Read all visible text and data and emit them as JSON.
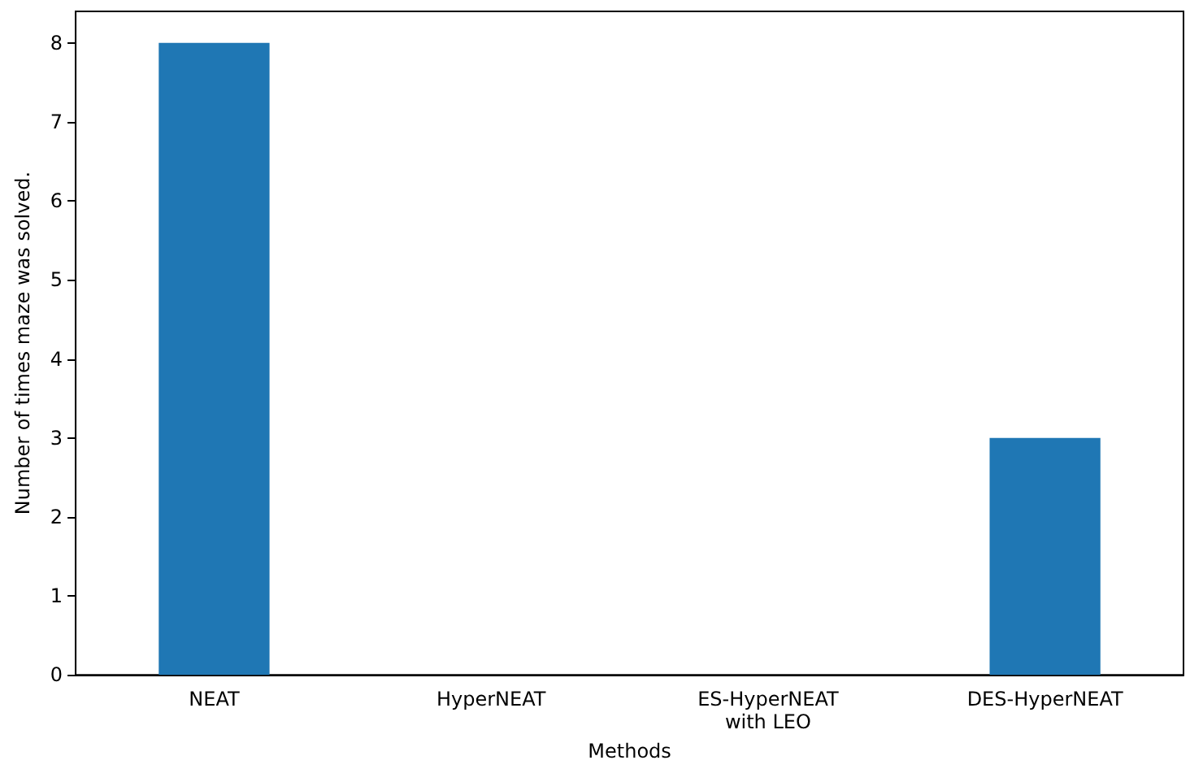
{
  "chart_data": {
    "type": "bar",
    "xlabel": "Methods",
    "ylabel": "Number of times maze was solved.",
    "categories": [
      "NEAT",
      "HyperNEAT",
      "ES-HyperNEAT\nwith LEO",
      "DES-HyperNEAT"
    ],
    "values": [
      8,
      0,
      0,
      3
    ],
    "color": "#1f77b4",
    "ylim": [
      0,
      8.4
    ],
    "yticks": [
      0,
      1,
      2,
      3,
      4,
      5,
      6,
      7,
      8
    ],
    "grid": false
  }
}
